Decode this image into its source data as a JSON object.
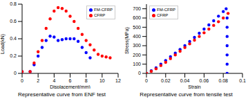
{
  "chart_data": [
    {
      "type": "scatter",
      "title": "Representative curve from ENF test",
      "xlabel": "Displacement(mm)",
      "ylabel": "Load(kN)",
      "xlim": [
        0,
        12
      ],
      "xticks": [
        0,
        2,
        4,
        6,
        8,
        10,
        12
      ],
      "ylim": [
        0,
        0.8
      ],
      "yticks": [
        0,
        0.2,
        0.4,
        0.6,
        0.8
      ],
      "grid": false,
      "legend": "upper right",
      "series": [
        {
          "name": "FM-CFRP",
          "color": "#0000ff",
          "marker": "circle",
          "x": [
            0,
            1,
            1.5,
            2,
            2.5,
            3,
            3.5,
            4,
            4.5,
            5,
            5.5,
            6,
            6.5,
            7,
            7.5,
            8,
            8.5
          ],
          "values": [
            0.02,
            0.02,
            0.1,
            0.2,
            0.3,
            0.38,
            0.43,
            0.42,
            0.38,
            0.39,
            0.4,
            0.4,
            0.4,
            0.37,
            0.3,
            0.24,
            0.18
          ]
        },
        {
          "name": "CFRP",
          "color": "#ff0000",
          "marker": "circle",
          "x": [
            0,
            1,
            1.5,
            2,
            2.5,
            3,
            3.5,
            4,
            4.5,
            5,
            5.5,
            6,
            6.5,
            7,
            7.5,
            8,
            8.5,
            9,
            9.5,
            10,
            10.5,
            11
          ],
          "values": [
            0.02,
            0.02,
            0.12,
            0.25,
            0.38,
            0.52,
            0.63,
            0.72,
            0.76,
            0.75,
            0.72,
            0.66,
            0.6,
            0.52,
            0.45,
            0.38,
            0.33,
            0.27,
            0.22,
            0.2,
            0.19,
            0.18
          ]
        }
      ]
    },
    {
      "type": "scatter",
      "title": "Representative curve from tensile test",
      "xlabel": "Strain",
      "ylabel": "Stress(MPa)",
      "xlim": [
        0,
        0.1
      ],
      "xticks": [
        0,
        0.02,
        0.04,
        0.06,
        0.08,
        0.1
      ],
      "ylim": [
        0,
        750
      ],
      "yticks": [
        0,
        100,
        200,
        300,
        400,
        500,
        600,
        700
      ],
      "grid": false,
      "legend": "upper left",
      "series": [
        {
          "name": "FM-CFRP",
          "color": "#0000ff",
          "marker": "circle",
          "x": [
            0,
            0.005,
            0.01,
            0.015,
            0.02,
            0.025,
            0.03,
            0.035,
            0.04,
            0.045,
            0.05,
            0.055,
            0.06,
            0.065,
            0.07,
            0.075,
            0.08,
            0.083,
            0.084,
            0.084,
            0.084,
            0.084,
            0.084,
            0.084,
            0.084
          ],
          "values": [
            0,
            28,
            60,
            100,
            140,
            180,
            220,
            260,
            300,
            345,
            390,
            435,
            480,
            525,
            570,
            620,
            670,
            700,
            600,
            500,
            400,
            300,
            200,
            100,
            0
          ]
        },
        {
          "name": "CFRP",
          "color": "#ff0000",
          "marker": "circle",
          "x": [
            0,
            0.005,
            0.01,
            0.015,
            0.02,
            0.025,
            0.03,
            0.035,
            0.04,
            0.045,
            0.05,
            0.055,
            0.06,
            0.065,
            0.07,
            0.075,
            0.08,
            0.085
          ],
          "values": [
            0,
            22,
            50,
            85,
            120,
            160,
            200,
            240,
            280,
            320,
            360,
            400,
            440,
            480,
            520,
            560,
            600,
            650
          ]
        }
      ]
    }
  ]
}
